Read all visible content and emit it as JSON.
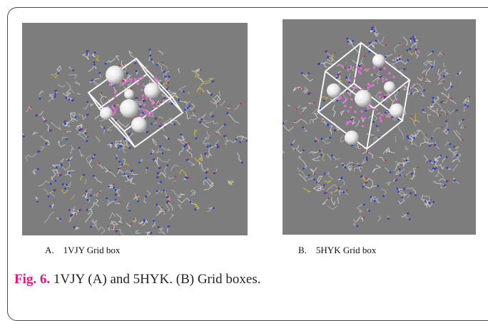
{
  "panels": [
    {
      "protein": "1VJY",
      "label": "A.    1VJY Grid box"
    },
    {
      "protein": "5HYK",
      "label": "B.    5HYK Grid box"
    }
  ],
  "caption": {
    "fig_label": "Fig. 6.",
    "text": " 1VJY (A) and 5HYK. (B) Grid boxes."
  },
  "colors": {
    "panel_bg": "#7d7d7d",
    "fig_label": "#e0177f",
    "atom_blue": "#2040d0",
    "atom_red": "#c03030",
    "ligand": "#e070d0",
    "grid_box": "#ffffff"
  }
}
